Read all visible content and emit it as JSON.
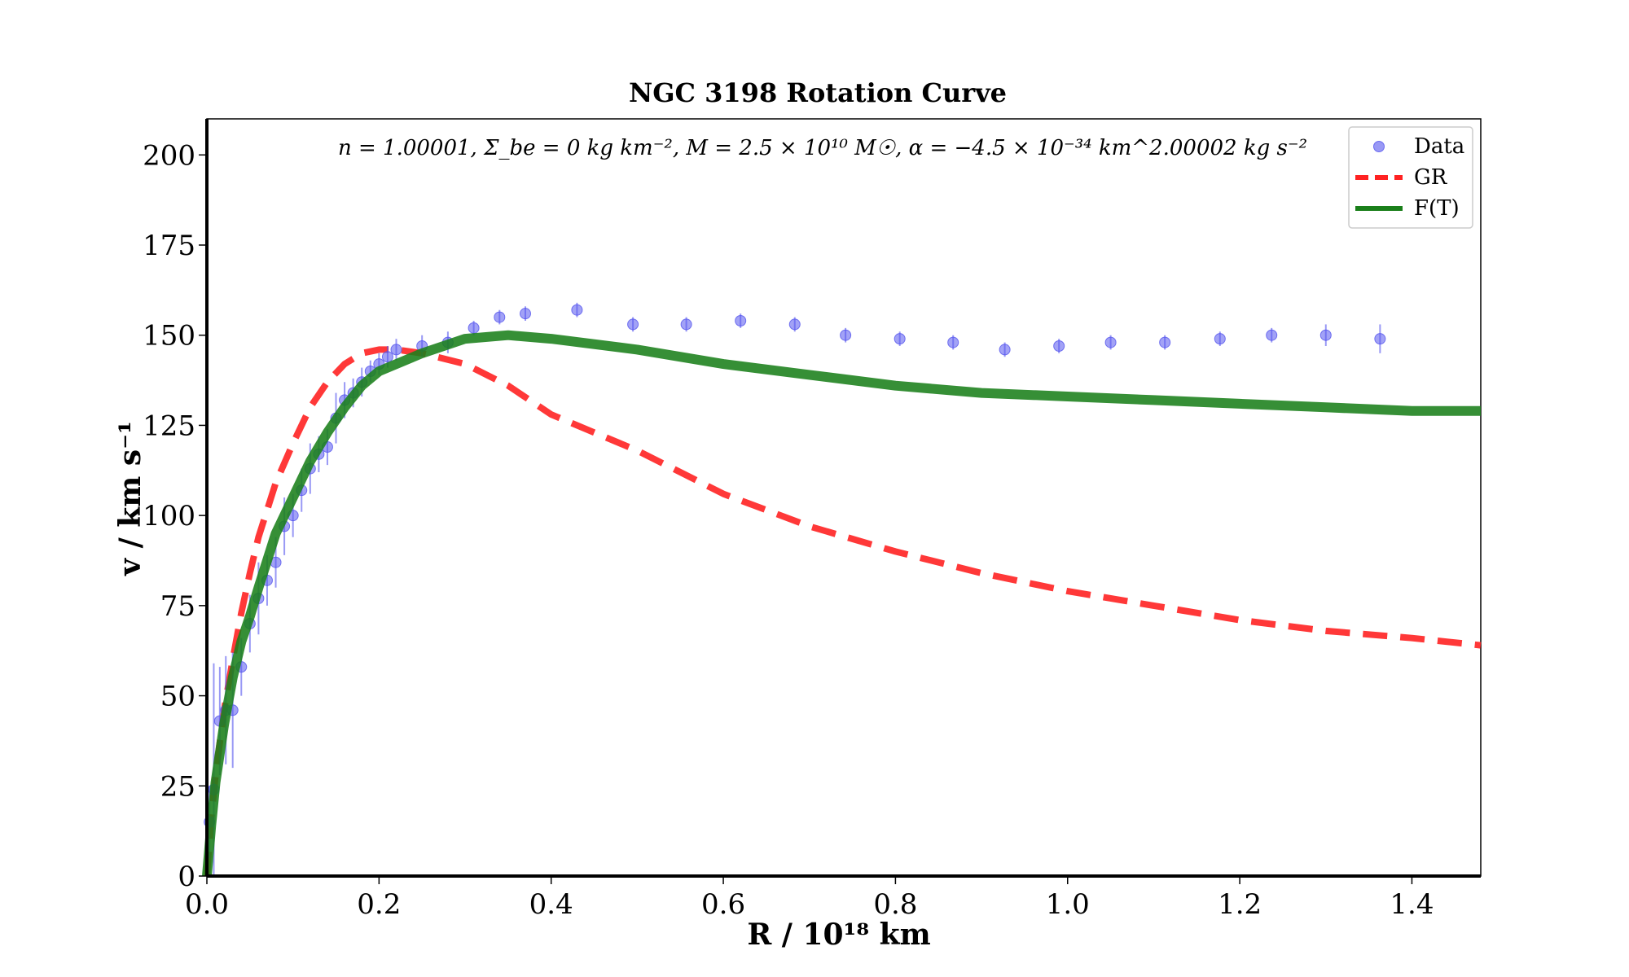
{
  "chart_data": {
    "type": "scatter",
    "title": "NGC 3198 Rotation Curve",
    "annotation": "n = 1.00001, Σ_be = 0 kg km⁻², M = 2.5 × 10¹⁰ M☉, α = −4.5 × 10⁻³⁴ km^2.00002 kg s⁻²",
    "xlabel": "R / 10¹⁸ km",
    "ylabel": "v / km s⁻¹",
    "xlim": [
      0.0,
      1.48
    ],
    "ylim": [
      0,
      210
    ],
    "xticks": [
      0.0,
      0.2,
      0.4,
      0.6,
      0.8,
      1.0,
      1.2,
      1.4
    ],
    "xtick_labels": [
      "0.0",
      "0.2",
      "0.4",
      "0.6",
      "0.8",
      "1.0",
      "1.2",
      "1.4"
    ],
    "yticks": [
      0,
      25,
      50,
      75,
      100,
      125,
      150,
      175,
      200
    ],
    "ytick_labels": [
      "0",
      "25",
      "50",
      "75",
      "100",
      "125",
      "150",
      "175",
      "200"
    ],
    "legend": {
      "position": "top-right",
      "entries": [
        "Data",
        "GR",
        "F(T)"
      ]
    },
    "colors": {
      "data": "#5555ee",
      "gr": "#ff2222",
      "ft": "#1a7f1a"
    },
    "series": [
      {
        "name": "Data",
        "kind": "errorbar",
        "x": [
          0.003,
          0.008,
          0.015,
          0.022,
          0.03,
          0.04,
          0.05,
          0.06,
          0.07,
          0.08,
          0.09,
          0.1,
          0.11,
          0.12,
          0.13,
          0.14,
          0.15,
          0.16,
          0.17,
          0.18,
          0.19,
          0.2,
          0.21,
          0.22,
          0.25,
          0.28,
          0.31,
          0.34,
          0.37,
          0.43,
          0.495,
          0.557,
          0.62,
          0.683,
          0.742,
          0.805,
          0.867,
          0.927,
          0.99,
          1.05,
          1.113,
          1.177,
          1.237,
          1.3,
          1.363
        ],
        "y": [
          15,
          24,
          43,
          46,
          46,
          58,
          70,
          77,
          82,
          87,
          97,
          100,
          107,
          113,
          117,
          119,
          127,
          132,
          134,
          137,
          140,
          142,
          144,
          146,
          147,
          148,
          152,
          155,
          156,
          157,
          153,
          153,
          154,
          153,
          150,
          149,
          148,
          146,
          147,
          148,
          148,
          149,
          150,
          150,
          149
        ],
        "err": [
          10,
          35,
          15,
          15,
          16,
          8,
          8,
          10,
          7,
          7,
          8,
          6,
          6,
          7,
          5,
          5,
          7,
          5,
          4,
          4,
          3,
          3,
          3,
          3,
          3,
          3,
          2,
          2,
          2,
          2,
          2,
          2,
          2,
          2,
          2,
          2,
          2,
          2,
          2,
          2,
          2,
          2,
          2,
          3,
          4
        ]
      },
      {
        "name": "GR",
        "kind": "dashed-line",
        "x": [
          0.0,
          0.005,
          0.01,
          0.02,
          0.03,
          0.04,
          0.05,
          0.06,
          0.08,
          0.1,
          0.12,
          0.14,
          0.16,
          0.18,
          0.2,
          0.22,
          0.25,
          0.3,
          0.35,
          0.4,
          0.5,
          0.6,
          0.7,
          0.8,
          0.9,
          1.0,
          1.1,
          1.2,
          1.3,
          1.4,
          1.48
        ],
        "y": [
          0,
          16,
          28,
          46,
          60,
          73,
          84,
          94,
          109,
          120,
          130,
          137,
          142,
          145,
          146,
          146,
          145,
          142,
          136,
          128,
          118,
          106,
          97,
          90,
          84,
          79,
          75,
          71,
          68,
          66,
          64
        ]
      },
      {
        "name": "F(T)",
        "kind": "line",
        "x": [
          0.0,
          0.005,
          0.01,
          0.02,
          0.03,
          0.04,
          0.05,
          0.06,
          0.08,
          0.1,
          0.12,
          0.14,
          0.16,
          0.18,
          0.2,
          0.25,
          0.3,
          0.35,
          0.4,
          0.5,
          0.6,
          0.7,
          0.8,
          0.9,
          1.0,
          1.1,
          1.2,
          1.3,
          1.4,
          1.48
        ],
        "y": [
          0,
          14,
          26,
          42,
          55,
          65,
          72,
          80,
          95,
          105,
          115,
          123,
          130,
          136,
          140,
          145,
          149,
          150,
          149,
          146,
          142,
          139,
          136,
          134,
          133,
          132,
          131,
          130,
          129,
          129
        ]
      }
    ]
  }
}
